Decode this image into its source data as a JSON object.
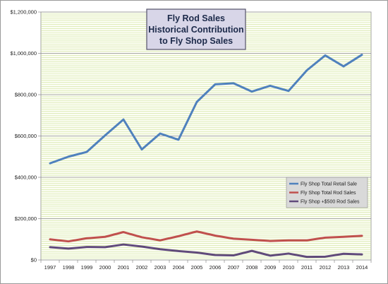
{
  "chart_data": {
    "type": "line",
    "title": [
      "Fly Rod Sales",
      "Historical Contribution",
      "to Fly Shop Sales"
    ],
    "x": [
      "1997",
      "1998",
      "1999",
      "2000",
      "2001",
      "2002",
      "2003",
      "2004",
      "2005",
      "2006",
      "2007",
      "2008",
      "2009",
      "2010",
      "2011",
      "2012",
      "2013",
      "2014"
    ],
    "ylim": [
      0,
      1200000
    ],
    "yticks": [
      "$0",
      "$200,000",
      "$400,000",
      "$600,000",
      "$800,000",
      "$1,000,000",
      "$1,200,000"
    ],
    "ytick_values": [
      0,
      200000,
      400000,
      600000,
      800000,
      1000000,
      1200000
    ],
    "grid": true,
    "legend_position": "right",
    "series": [
      {
        "name": "Fly Shop Total Retail Sale",
        "color": "#4f81bd",
        "values": [
          468000,
          500000,
          523000,
          603000,
          680000,
          535000,
          612000,
          582000,
          765000,
          850000,
          855000,
          815000,
          843000,
          818000,
          918000,
          990000,
          937000,
          993000
        ]
      },
      {
        "name": "Fly Shop Total Rod Sales",
        "color": "#c0504d",
        "values": [
          100000,
          90000,
          105000,
          112000,
          135000,
          110000,
          95000,
          115000,
          138000,
          118000,
          103000,
          98000,
          92000,
          95000,
          95000,
          108000,
          112000,
          117000
        ]
      },
      {
        "name": "Fly Shop +$500 Rod Sales",
        "color": "#604a7b",
        "values": [
          62000,
          55000,
          63000,
          62000,
          75000,
          65000,
          52000,
          43000,
          36000,
          24000,
          22000,
          44000,
          21000,
          31000,
          15000,
          16000,
          30000,
          27000
        ]
      }
    ]
  }
}
